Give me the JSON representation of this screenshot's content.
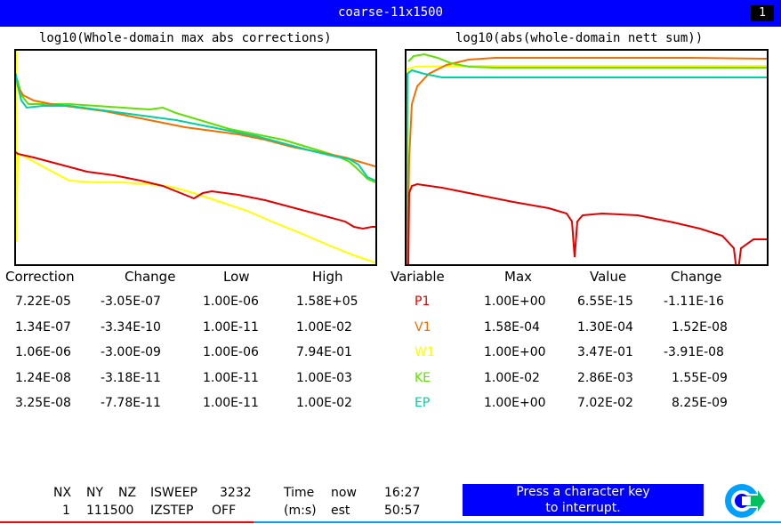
{
  "window": {
    "title": "coarse-11x1500",
    "badge": "1"
  },
  "left_plot": {
    "title": "log10(Whole-domain max abs corrections)"
  },
  "right_plot": {
    "title": "log10(abs(whole-domain nett sum))"
  },
  "left_table": {
    "headers": [
      "Correction",
      "Change",
      "Low",
      "High"
    ],
    "rows": [
      [
        "7.22E-05",
        "-3.05E-07",
        "1.00E-06",
        "1.58E+05"
      ],
      [
        "1.34E-07",
        "-3.34E-10",
        "1.00E-11",
        "1.00E-02"
      ],
      [
        "1.06E-06",
        "-3.00E-09",
        "1.00E-06",
        "7.94E-01"
      ],
      [
        "1.24E-08",
        "-3.18E-11",
        "1.00E-11",
        "1.00E-03"
      ],
      [
        "3.25E-08",
        "-7.78E-11",
        "1.00E-11",
        "1.00E-02"
      ]
    ]
  },
  "right_table": {
    "headers": [
      "Variable",
      "Max",
      "Value",
      "Change"
    ],
    "rows": [
      {
        "name": "P1",
        "color": "#e00000",
        "max": "1.00E+00",
        "value": "6.55E-15",
        "change": "-1.11E-16"
      },
      {
        "name": "V1",
        "color": "#f07000",
        "max": "1.58E-04",
        "value": "1.30E-04",
        "change": "1.52E-08"
      },
      {
        "name": "W1",
        "color": "#ffff00",
        "max": "1.00E+00",
        "value": "3.47E-01",
        "change": "-3.91E-08"
      },
      {
        "name": "KE",
        "color": "#60e000",
        "max": "1.00E-02",
        "value": "2.86E-03",
        "change": "1.55E-09"
      },
      {
        "name": "EP",
        "color": "#00d0a0",
        "max": "1.00E+00",
        "value": "7.02E-02",
        "change": "8.25E-09"
      }
    ]
  },
  "footer": {
    "nx_label": "NX",
    "ny_label": "NY",
    "nz_label": "NZ",
    "isweep_label": "ISWEEP",
    "isweep_value": "3232",
    "nx_value": "1",
    "nynz_value": "111500",
    "izstep_label": "IZSTEP",
    "izstep_value": "OFF",
    "time_label": "Time",
    "now_label": "now",
    "now_value": "16:27",
    "ms_label": "(m:s)",
    "est_label": "est",
    "est_value": "50:57",
    "interrupt_line1": "Press a character key",
    "interrupt_line2": "to interrupt."
  },
  "icons": {
    "logo": "phoenics-logo-icon"
  }
}
